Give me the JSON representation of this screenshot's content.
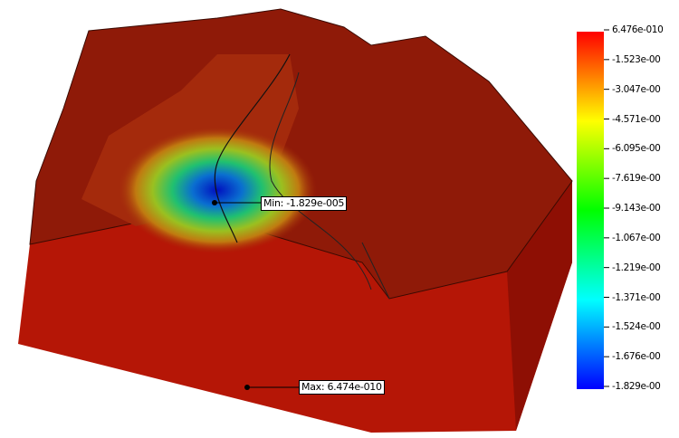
{
  "legend": {
    "labels": [
      "6.476e-010",
      "-1.523e-00",
      "-3.047e-00",
      "-4.571e-00",
      "-6.095e-00",
      "-7.619e-00",
      "-9.143e-00",
      "-1.067e-00",
      "-1.219e-00",
      "-1.371e-00",
      "-1.524e-00",
      "-1.676e-00",
      "-1.829e-00"
    ]
  },
  "annotations": {
    "min": "Min: -1.829e-005",
    "max": "Max: 6.474e-010"
  }
}
